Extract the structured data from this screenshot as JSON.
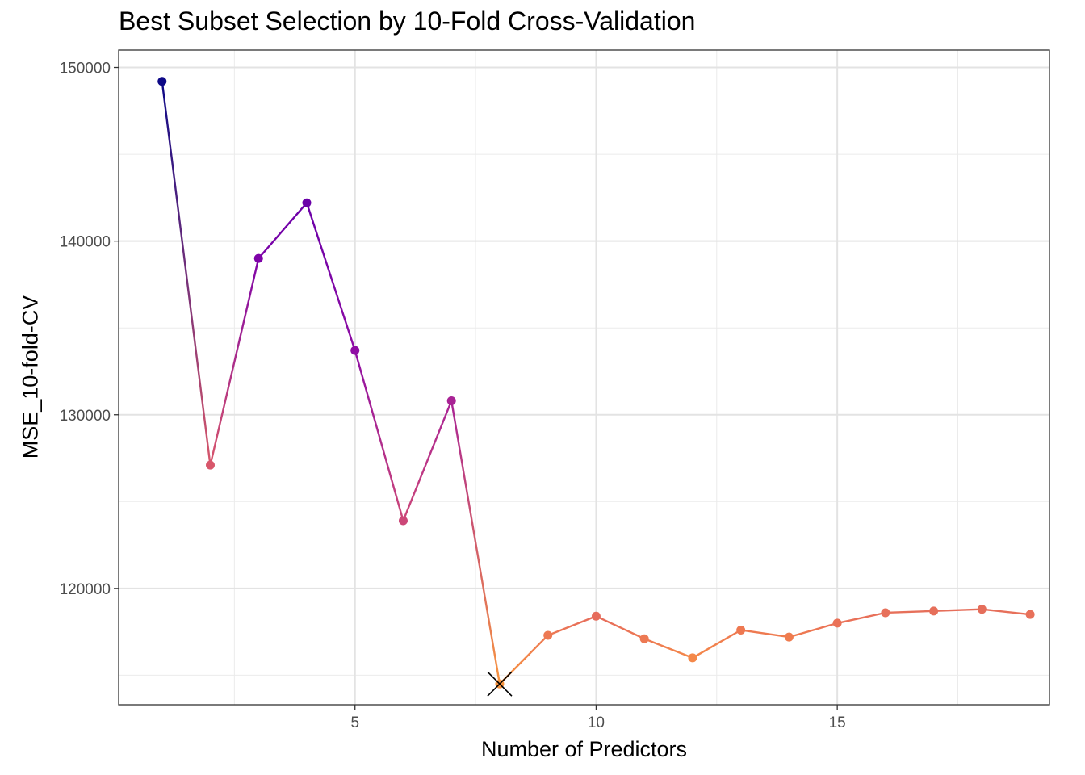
{
  "chart_data": {
    "type": "line",
    "title": "Best Subset Selection by 10-Fold Cross-Validation",
    "xlabel": "Number of Predictors",
    "ylabel": "MSE_10-fold-CV",
    "xlim": [
      0.1,
      19.4
    ],
    "ylim": [
      113300,
      151000
    ],
    "x_ticks": [
      5,
      10,
      15
    ],
    "y_ticks": [
      120000,
      130000,
      140000,
      150000
    ],
    "x_tick_labels": [
      "5",
      "10",
      "15"
    ],
    "y_tick_labels": [
      "120000",
      "130000",
      "140000",
      "150000"
    ],
    "grid": true,
    "legend": "none",
    "color_scale": "plasma (by MSE)",
    "series": [
      {
        "x": [
          1,
          2,
          3,
          4,
          5,
          6,
          7,
          8,
          9,
          10,
          11,
          12,
          13,
          14,
          15,
          16,
          17,
          18,
          19
        ],
        "values": [
          149200,
          127100,
          139000,
          142200,
          133700,
          123900,
          130800,
          114500,
          117300,
          118400,
          117100,
          116000,
          117600,
          117200,
          118000,
          118600,
          118700,
          118800,
          118500
        ]
      }
    ],
    "colors": [
      "#0d0887",
      "#d8576b",
      "#7e03a8",
      "#6a00a8",
      "#8f0da4",
      "#cc4778",
      "#a92395",
      "#f89540",
      "#ed7953",
      "#e66c5c",
      "#ed7953",
      "#f48849",
      "#ee7851",
      "#ef7c4f",
      "#ea7157",
      "#e7705a",
      "#e66f5a",
      "#e56e5b",
      "#e8715a"
    ],
    "best_marker": {
      "x": 8,
      "value": 114500,
      "symbol": "X"
    }
  }
}
